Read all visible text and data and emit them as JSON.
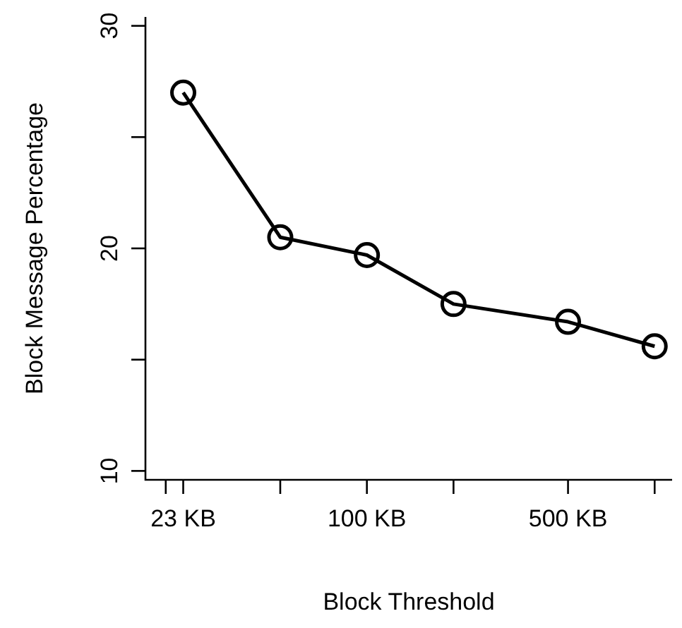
{
  "chart_data": {
    "type": "line",
    "xlabel": "Block Threshold",
    "ylabel": "Block Message Percentage",
    "log": "x",
    "x": [
      23,
      50,
      100,
      200,
      500,
      1000
    ],
    "series": [
      {
        "color": "#000000",
        "values": [
          27.0,
          20.5,
          19.7,
          17.5,
          16.7,
          15.6
        ]
      }
    ],
    "xlim": [
      17,
      1150
    ],
    "ylim": [
      9.6,
      30.4
    ],
    "xticks": [
      {
        "value": 20,
        "label": null
      },
      {
        "value": 23,
        "label": "23 KB"
      },
      {
        "value": 50,
        "label": null
      },
      {
        "value": 100,
        "label": "100 KB"
      },
      {
        "value": 200,
        "label": null
      },
      {
        "value": 500,
        "label": "500 KB"
      },
      {
        "value": 1000,
        "label": null
      }
    ],
    "yticks": [
      10,
      {
        "value": 15,
        "label": null
      },
      20,
      {
        "value": 25,
        "label": null
      },
      30
    ],
    "marker": "circle",
    "line_style": "solid"
  }
}
